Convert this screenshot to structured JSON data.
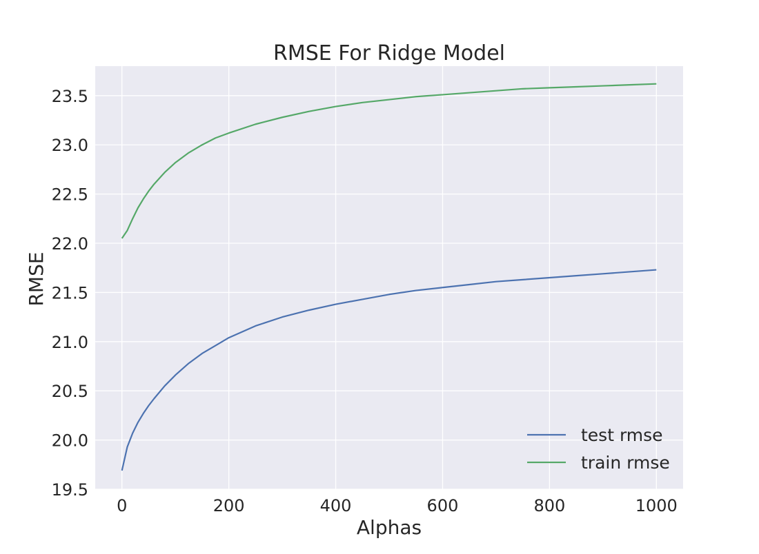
{
  "chart_data": {
    "type": "line",
    "title": "RMSE For Ridge Model",
    "xlabel": "Alphas",
    "ylabel": "RMSE",
    "xlim": [
      -50,
      1050
    ],
    "ylim": [
      19.5,
      23.8
    ],
    "x_ticks": [
      0,
      200,
      400,
      600,
      800,
      1000
    ],
    "x_tick_labels": [
      "0",
      "200",
      "400",
      "600",
      "800",
      "1000"
    ],
    "y_ticks": [
      19.5,
      20.0,
      20.5,
      21.0,
      21.5,
      22.0,
      22.5,
      23.0,
      23.5
    ],
    "y_tick_labels": [
      "19.5",
      "20.0",
      "20.5",
      "21.0",
      "21.5",
      "22.0",
      "22.5",
      "23.0",
      "23.5"
    ],
    "grid": true,
    "legend_position": "lower-right",
    "background": "#eaeaf2",
    "series": [
      {
        "name": "test rmse",
        "color": "#4c72b0",
        "x": [
          0,
          10,
          20,
          30,
          40,
          50,
          60,
          80,
          100,
          125,
          150,
          175,
          200,
          250,
          300,
          350,
          400,
          450,
          500,
          550,
          600,
          650,
          700,
          750,
          800,
          850,
          900,
          950,
          1000
        ],
        "y": [
          19.69,
          19.93,
          20.07,
          20.18,
          20.27,
          20.35,
          20.42,
          20.55,
          20.66,
          20.78,
          20.88,
          20.96,
          21.04,
          21.16,
          21.25,
          21.32,
          21.38,
          21.43,
          21.48,
          21.52,
          21.55,
          21.58,
          21.61,
          21.63,
          21.65,
          21.67,
          21.69,
          21.71,
          21.73
        ]
      },
      {
        "name": "train rmse",
        "color": "#55a868",
        "x": [
          0,
          10,
          20,
          30,
          40,
          50,
          60,
          80,
          100,
          125,
          150,
          175,
          200,
          250,
          300,
          350,
          400,
          450,
          500,
          550,
          600,
          650,
          700,
          750,
          800,
          850,
          900,
          950,
          1000
        ],
        "y": [
          22.05,
          22.13,
          22.25,
          22.36,
          22.45,
          22.53,
          22.6,
          22.72,
          22.82,
          22.92,
          23.0,
          23.07,
          23.12,
          23.21,
          23.28,
          23.34,
          23.39,
          23.43,
          23.46,
          23.49,
          23.51,
          23.53,
          23.55,
          23.57,
          23.58,
          23.59,
          23.6,
          23.61,
          23.62
        ]
      }
    ]
  }
}
